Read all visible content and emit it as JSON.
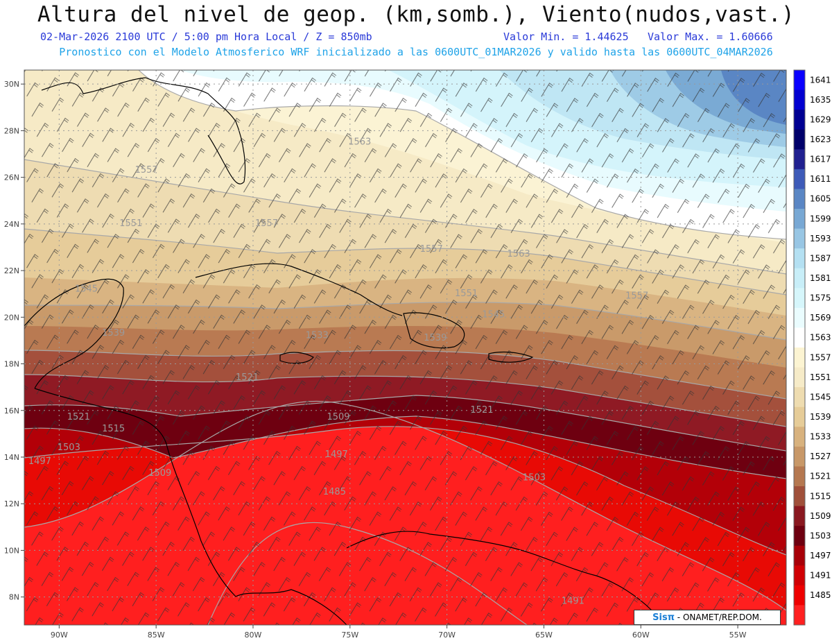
{
  "header": {
    "title": "Altura del nivel de geop. (km,somb.), Viento(nudos,vast.)",
    "date_time": "02-Mar-2026  2100 UTC / 5:00 pm Hora Local / Z = 850mb",
    "value_min": "Valor Min. = 1.44625",
    "value_max": "Valor Max. = 1.60666",
    "model_info": "Pronostico con el Modelo Atmosferico WRF inicializado a las 0600UTC_01MAR2026 y valido hasta las  0600UTC_04MAR2026"
  },
  "map": {
    "lat_labels": [
      "30N",
      "28N",
      "26N",
      "24N",
      "22N",
      "20N",
      "18N",
      "16N",
      "14N",
      "12N",
      "10N",
      "8N"
    ],
    "lon_labels": [
      "90W",
      "85W",
      "80W",
      "75W",
      "70W",
      "65W",
      "60W",
      "55W"
    ],
    "contour_labels": [
      {
        "text": "1563",
        "lon": -74.5,
        "lat": 27.4
      },
      {
        "text": "1557",
        "lon": -85.5,
        "lat": 26.2
      },
      {
        "text": "1551",
        "lon": -86.3,
        "lat": 23.9
      },
      {
        "text": "1557",
        "lon": -79.3,
        "lat": 23.9
      },
      {
        "text": "1557",
        "lon": -70.8,
        "lat": 22.8
      },
      {
        "text": "1563",
        "lon": -66.3,
        "lat": 22.6
      },
      {
        "text": "1545",
        "lon": -88.6,
        "lat": 21.1
      },
      {
        "text": "1551",
        "lon": -69.0,
        "lat": 20.9
      },
      {
        "text": "1557",
        "lon": -60.2,
        "lat": 20.8
      },
      {
        "text": "1545",
        "lon": -67.6,
        "lat": 20.0
      },
      {
        "text": "1539",
        "lon": -87.2,
        "lat": 19.2
      },
      {
        "text": "1533",
        "lon": -76.7,
        "lat": 19.1
      },
      {
        "text": "1539",
        "lon": -70.6,
        "lat": 19.0
      },
      {
        "text": "1521",
        "lon": -80.3,
        "lat": 17.3
      },
      {
        "text": "1521",
        "lon": -89.0,
        "lat": 15.6
      },
      {
        "text": "1515",
        "lon": -87.2,
        "lat": 15.1
      },
      {
        "text": "1509",
        "lon": -75.6,
        "lat": 15.6
      },
      {
        "text": "1521",
        "lon": -68.2,
        "lat": 15.9
      },
      {
        "text": "1503",
        "lon": -89.5,
        "lat": 14.3
      },
      {
        "text": "1497",
        "lon": -75.7,
        "lat": 14.0
      },
      {
        "text": "1497",
        "lon": -91.0,
        "lat": 13.7
      },
      {
        "text": "1509",
        "lon": -84.8,
        "lat": 13.2
      },
      {
        "text": "1503",
        "lon": -65.5,
        "lat": 13.0
      },
      {
        "text": "1485",
        "lon": -75.8,
        "lat": 12.4
      },
      {
        "text": "1491",
        "lon": -63.5,
        "lat": 7.7
      }
    ]
  },
  "colorbar": {
    "labels": [
      "1641",
      "1635",
      "1629",
      "1623",
      "1617",
      "1611",
      "1605",
      "1599",
      "1593",
      "1587",
      "1581",
      "1575",
      "1569",
      "1563",
      "1557",
      "1551",
      "1545",
      "1539",
      "1533",
      "1527",
      "1521",
      "1515",
      "1509",
      "1503",
      "1497",
      "1491",
      "1485"
    ],
    "colors": [
      "#0a00ff",
      "#0200d0",
      "#000092",
      "#00006a",
      "#202090",
      "#3d5ab8",
      "#5a86c4",
      "#78a8d4",
      "#98c6e4",
      "#b4e0f2",
      "#c8eef8",
      "#d6f6fb",
      "#eafcfe",
      "#ffffff",
      "#fcf4d2",
      "#f6ebc8",
      "#eedcb0",
      "#e6cc98",
      "#d8b27e",
      "#c89868",
      "#b57850",
      "#a0503a",
      "#8a1820",
      "#6e0010",
      "#a80008",
      "#d00004",
      "#ee0000",
      "#ff2020"
    ]
  },
  "credit": {
    "logo": "Sisπ",
    "org": " - ONAMET/REP.DOM."
  }
}
